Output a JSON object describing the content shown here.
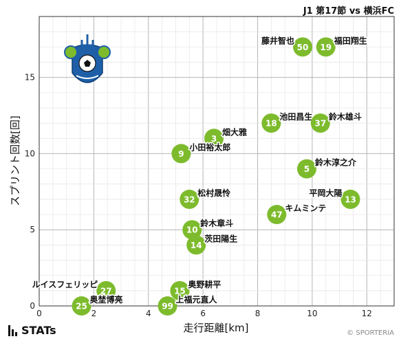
{
  "header": {
    "title": "J1 第17節 vs 横浜FC"
  },
  "footer": {
    "brand": "STATs",
    "copyright": "© SPORTERIA"
  },
  "colors": {
    "bubble": "#7dbb2d",
    "bubble_text": "#ffffff",
    "grid": "#cccccc",
    "axis": "#333333"
  },
  "chart_data": {
    "type": "scatter",
    "title": "",
    "xlabel": "走行距離[km]",
    "ylabel": "スプリント回数[回]",
    "xlim": [
      0,
      13
    ],
    "ylim": [
      0,
      19
    ],
    "xticks": [
      0,
      2,
      4,
      6,
      8,
      10,
      12
    ],
    "yticks": [
      0,
      5,
      10,
      15
    ],
    "grid": true,
    "points": [
      {
        "number": "50",
        "name": "藤井智也",
        "x": 9.65,
        "y": 17.0,
        "label_side": "left"
      },
      {
        "number": "19",
        "name": "福田翔生",
        "x": 10.5,
        "y": 17.0,
        "label_side": "right"
      },
      {
        "number": "18",
        "name": "池田昌生",
        "x": 8.5,
        "y": 12.0,
        "label_side": "right"
      },
      {
        "number": "37",
        "name": "鈴木雄斗",
        "x": 10.3,
        "y": 12.0,
        "label_side": "right"
      },
      {
        "number": "3",
        "name": "畑大雅",
        "x": 6.4,
        "y": 11.0,
        "label_side": "right"
      },
      {
        "number": "9",
        "name": "小田裕太郎",
        "x": 5.2,
        "y": 10.0,
        "label_side": "right"
      },
      {
        "number": "5",
        "name": "鈴木淳之介",
        "x": 9.8,
        "y": 9.0,
        "label_side": "right"
      },
      {
        "number": "32",
        "name": "松村晟怜",
        "x": 5.5,
        "y": 7.0,
        "label_side": "right"
      },
      {
        "number": "13",
        "name": "平岡大陽",
        "x": 11.4,
        "y": 7.0,
        "label_side": "left"
      },
      {
        "number": "47",
        "name": "キムミンテ",
        "x": 8.7,
        "y": 6.0,
        "label_side": "right"
      },
      {
        "number": "10",
        "name": "鈴木章斗",
        "x": 5.6,
        "y": 5.0,
        "label_side": "right"
      },
      {
        "number": "14",
        "name": "茨田陽生",
        "x": 5.75,
        "y": 4.0,
        "label_side": "right"
      },
      {
        "number": "27",
        "name": "ルイスフェリッピ",
        "x": 2.45,
        "y": 1.0,
        "label_side": "left"
      },
      {
        "number": "15",
        "name": "奥野耕平",
        "x": 5.15,
        "y": 1.0,
        "label_side": "right"
      },
      {
        "number": "25",
        "name": "奥埜博亮",
        "x": 1.55,
        "y": 0.0,
        "label_side": "right"
      },
      {
        "number": "99",
        "name": "上福元直人",
        "x": 4.7,
        "y": 0.0,
        "label_side": "right"
      }
    ]
  }
}
